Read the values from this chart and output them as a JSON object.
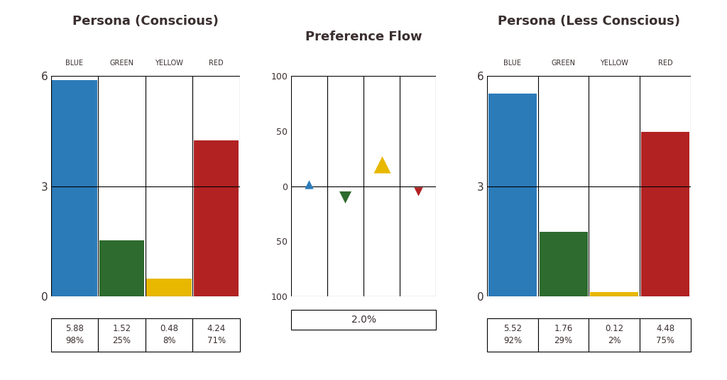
{
  "chart1_title": "Persona (Conscious)",
  "chart2_title": "Preference Flow",
  "chart3_title": "Persona (Less Conscious)",
  "categories": [
    "BLUE",
    "GREEN",
    "YELLOW",
    "RED"
  ],
  "bar_colors": [
    "#2B7BB9",
    "#2E6B2E",
    "#E8B800",
    "#B22222"
  ],
  "conscious_values": [
    5.88,
    1.52,
    0.48,
    4.24
  ],
  "conscious_labels": [
    "5.88\n98%",
    "1.52\n25%",
    "0.48\n8%",
    "4.24\n71%"
  ],
  "less_conscious_values": [
    5.52,
    1.76,
    0.12,
    4.48
  ],
  "less_conscious_labels": [
    "5.52\n92%",
    "1.76\n29%",
    "0.12\n2%",
    "4.48\n75%"
  ],
  "pref_flow_label": "2.0%",
  "flow_values": [
    2,
    -10,
    20,
    -5
  ],
  "ylim_bar": [
    0,
    6
  ],
  "bar_yticks": [
    0,
    3,
    6
  ],
  "bg_color": "#FFFFFF",
  "text_color": "#3A2F2F"
}
